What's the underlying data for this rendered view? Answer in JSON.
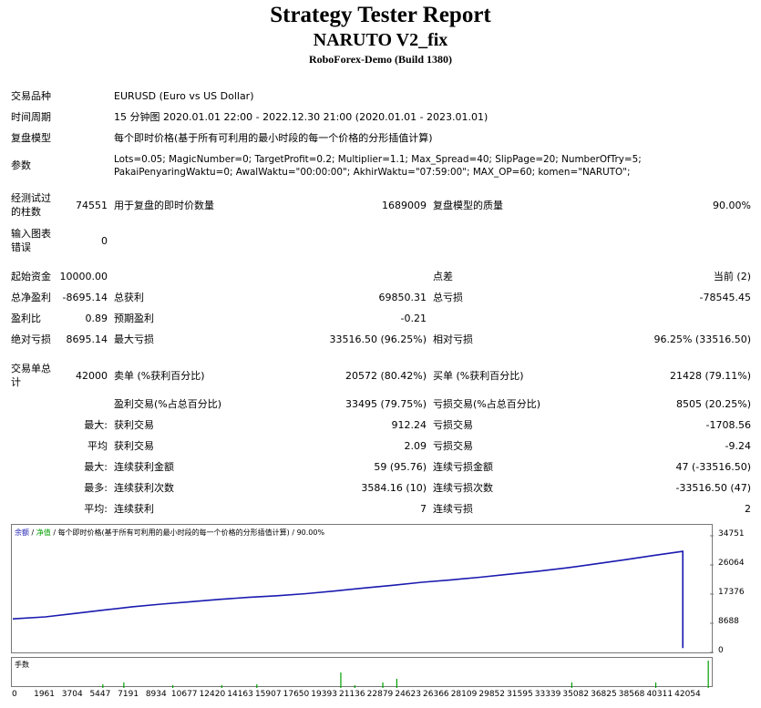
{
  "header": {
    "title": "Strategy Tester Report",
    "ea_name": "NARUTO V2_fix",
    "server": "RoboForex-Demo (Build 1380)"
  },
  "info": {
    "symbol_label": "交易品种",
    "symbol_value": "EURUSD (Euro vs US Dollar)",
    "period_label": "时间周期",
    "period_value": "15 分钟图 2020.01.01 22:00 - 2022.12.30 21:00 (2020.01.01 - 2023.01.01)",
    "model_label": "复盘模型",
    "model_value": "每个即时价格(基于所有可利用的最小时段的每一个价格的分形插值计算)",
    "params_label": "参数",
    "params_line1": "Lots=0.05; MagicNumber=0; TargetProfit=0.2; Multiplier=1.1; Max_Spread=40; SlipPage=20; NumberOfTry=5;",
    "params_line2": "PakaiPenyaringWaktu=0; AwalWaktu=\"00:00:00\"; AkhirWaktu=\"07:59:00\"; MAX_OP=60; komen=\"NARUTO\";"
  },
  "stats": {
    "bars_label_1": "经测试过",
    "bars_label_2": "的柱数",
    "bars_value": "74551",
    "ticks_label": "用于复盘的即时价数量",
    "ticks_value": "1689009",
    "quality_label": "复盘模型的质量",
    "quality_value": "90.00%",
    "errors_label_1": "输入图表",
    "errors_label_2": "错误",
    "errors_value": "0",
    "deposit_label": "起始资金",
    "deposit_value": "10000.00",
    "spread_label": "点差",
    "spread_value": "当前 (2)",
    "net_label": "总净盈利",
    "net_value": "-8695.14",
    "gross_profit_label": "总获利",
    "gross_profit_value": "69850.31",
    "gross_loss_label": "总亏损",
    "gross_loss_value": "-78545.45",
    "pf_label": "盈利比",
    "pf_value": "0.89",
    "payoff_label": "预期盈利",
    "payoff_value": "-0.21",
    "abs_dd_label": "绝对亏损",
    "abs_dd_value": "8695.14",
    "max_dd_label": "最大亏损",
    "max_dd_value": "33516.50 (96.25%)",
    "rel_dd_label": "相对亏损",
    "rel_dd_value": "96.25% (33516.50)",
    "trades_label_1": "交易单总",
    "trades_label_2": "计",
    "trades_value": "42000",
    "short_label": "卖单 (%获利百分比)",
    "short_value": "20572 (80.42%)",
    "long_label": "买单 (%获利百分比)",
    "long_value": "21428 (79.11%)",
    "profit_trades_label": "盈利交易(%占总百分比)",
    "profit_trades_value": "33495 (79.75%)",
    "loss_trades_label": "亏损交易(%占总百分比)",
    "loss_trades_value": "8505 (20.25%)",
    "largest_prefix": "最大:",
    "largest_profit_label": "获利交易",
    "largest_profit_value": "912.24",
    "largest_loss_label": "亏损交易",
    "largest_loss_value": "-1708.56",
    "average_prefix": "平均",
    "avg_profit_label": "获利交易",
    "avg_profit_value": "2.09",
    "avg_loss_label": "亏损交易",
    "avg_loss_value": "-9.24",
    "max_prefix": "最大:",
    "max_consec_wins_label": "连续获利金额",
    "max_consec_wins_value": "59 (95.76)",
    "max_consec_losses_label": "连续亏损金额",
    "max_consec_losses_value": "47 (-33516.50)",
    "most_prefix": "最多:",
    "max_consec_profit_label": "连续获利次数",
    "max_consec_profit_value": "3584.16 (10)",
    "max_consec_loss_label": "连续亏损次数",
    "max_consec_loss_value": "-33516.50 (47)",
    "avg_prefix2": "平均:",
    "avg_consec_wins_label": "连续获利",
    "avg_consec_wins_value": "7",
    "avg_consec_losses_label": "连续亏损",
    "avg_consec_losses_value": "2"
  },
  "chart": {
    "legend_balance": "余额",
    "legend_sep1": " / ",
    "legend_equity": "净值",
    "legend_rest": " / 每个即时价格(基于所有可利用的最小时段的每一个价格的分形插值计算) / 90.00%",
    "volume_label": "手数",
    "line_color": "#1a1ab0",
    "volume_color": "#00a000"
  },
  "chart_data": {
    "type": "line",
    "ylim": [
      0,
      34751
    ],
    "y_ticks": [
      "34751",
      "26064",
      "17376",
      "8688",
      "0"
    ],
    "x_ticks": [
      "0",
      "1961",
      "3704",
      "5447",
      "7191",
      "8934",
      "10677",
      "12420",
      "14163",
      "15907",
      "17650",
      "19393",
      "21136",
      "22879",
      "24623",
      "26366",
      "28109",
      "29852",
      "31595",
      "33339",
      "35082",
      "36825",
      "38568",
      "40311",
      "42054"
    ],
    "x": [
      0,
      1961,
      3704,
      5447,
      7191,
      8934,
      10677,
      12420,
      14163,
      15907,
      17650,
      19393,
      21136,
      22879,
      24623,
      26366,
      28109,
      29852,
      31595,
      33339,
      35082,
      36825,
      38568,
      40311,
      42000
    ],
    "series": [
      {
        "values": [
          10000,
          10600,
          11600,
          12600,
          13600,
          14400,
          15100,
          15800,
          16400,
          16900,
          17500,
          18300,
          19200,
          20000,
          20900,
          21600,
          22400,
          23300,
          24200,
          25200,
          26400,
          27600,
          28900,
          30100,
          1305
        ]
      }
    ]
  }
}
